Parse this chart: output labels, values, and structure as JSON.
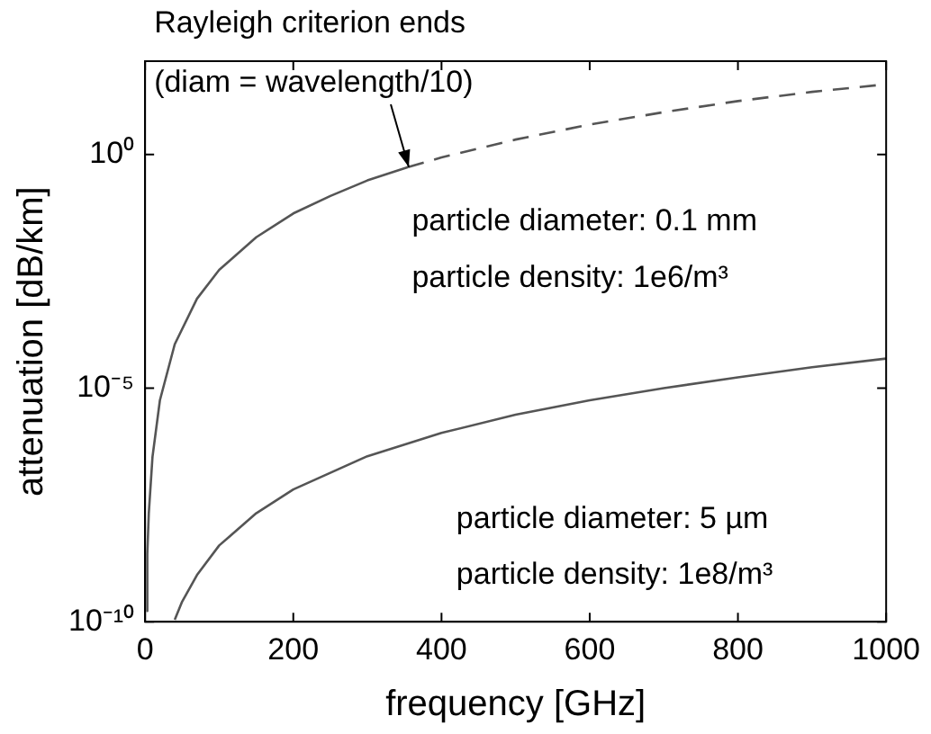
{
  "chart_data": {
    "type": "line",
    "xlabel": "frequency [GHz]",
    "ylabel": "attenuation [dB/km]",
    "log": "y",
    "xlim": [
      0,
      1000
    ],
    "xticks": [
      0,
      200,
      400,
      600,
      800,
      1000
    ],
    "ylim": [
      1e-10,
      100
    ],
    "yticks": [
      {
        "value": 1e-10,
        "label": "10⁻¹⁰"
      },
      {
        "value": 1e-05,
        "label": "10⁻⁵"
      },
      {
        "value": 1,
        "label": "10⁰"
      }
    ],
    "grid": false,
    "legend": false,
    "marker": "none",
    "series": [
      {
        "color": "#555555",
        "line_style": "solid",
        "x": [
          1.5,
          3,
          5,
          10,
          20,
          40,
          70,
          100,
          150,
          200,
          250,
          300,
          355
        ],
        "values": [
          1.7e-10,
          2.8e-09,
          2.1e-08,
          3.4e-07,
          5.5e-06,
          8.7e-05,
          0.00082,
          0.0034,
          0.017,
          0.055,
          0.13,
          0.28,
          0.54
        ]
      },
      {
        "color": "#555555",
        "line_style": "dashed",
        "x": [
          355,
          400,
          500,
          600,
          700,
          800,
          900,
          1000
        ],
        "values": [
          0.54,
          0.87,
          2.1,
          4.4,
          8.1,
          14,
          22,
          32
        ]
      },
      {
        "color": "#555555",
        "line_style": "solid",
        "x": [
          40,
          50,
          70,
          100,
          150,
          200,
          300,
          400,
          500,
          600,
          700,
          800,
          900,
          1000
        ],
        "values": [
          1.1e-10,
          2.7e-10,
          1e-09,
          4.3e-09,
          2.1e-08,
          6.8e-08,
          3.5e-07,
          1.1e-06,
          2.7e-06,
          5.5e-06,
          1e-05,
          1.7e-05,
          2.8e-05,
          4.3e-05
        ]
      }
    ],
    "annotations": [
      "Rayleigh criterion ends",
      "(diam = wavelength/10)",
      "particle diameter: 0.1 mm",
      "particle density: 1e6/m³",
      "particle diameter: 5 µm",
      "particle density: 1e8/m³"
    ]
  }
}
